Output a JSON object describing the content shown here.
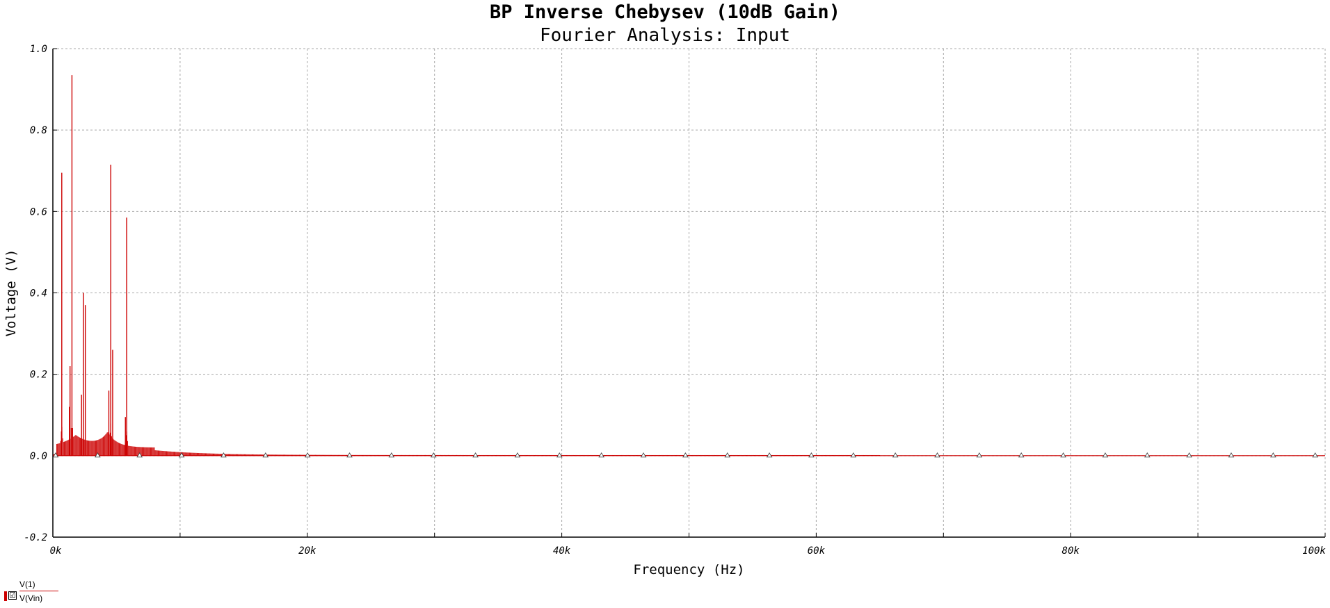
{
  "chart_data": {
    "type": "bar",
    "title": "BP Inverse Chebysev (10dB Gain)",
    "subtitle": "Fourier Analysis: Input",
    "xlabel": "Frequency (Hz)",
    "ylabel": "Voltage (V)",
    "xlim": [
      0,
      100000
    ],
    "ylim": [
      -0.2,
      1.0
    ],
    "xticks": [
      0,
      20000,
      40000,
      60000,
      80000,
      100000
    ],
    "xtick_labels": [
      "0k",
      "20k",
      "40k",
      "60k",
      "80k",
      "100k"
    ],
    "yticks": [
      -0.2,
      0.0,
      0.2,
      0.4,
      0.6,
      0.8,
      1.0
    ],
    "ytick_labels": [
      "-0.2",
      "0.0",
      "0.2",
      "0.4",
      "0.6",
      "0.8",
      "1.0"
    ],
    "grid": true,
    "series": [
      {
        "name": "V(Vin)",
        "color": "#cc0000",
        "peaks": [
          {
            "x": 700,
            "y": 0.695
          },
          {
            "x": 1500,
            "y": 0.935
          },
          {
            "x": 1350,
            "y": 0.22
          },
          {
            "x": 1300,
            "y": 0.12
          },
          {
            "x": 2400,
            "y": 0.4
          },
          {
            "x": 2550,
            "y": 0.37
          },
          {
            "x": 2250,
            "y": 0.15
          },
          {
            "x": 4550,
            "y": 0.715
          },
          {
            "x": 4700,
            "y": 0.26
          },
          {
            "x": 4400,
            "y": 0.16
          },
          {
            "x": 5800,
            "y": 0.585
          },
          {
            "x": 5700,
            "y": 0.095
          }
        ],
        "marker_spacing": 3300
      }
    ],
    "legend": {
      "position": "bottom-left",
      "entries": [
        "V(1)",
        "V(Vin)"
      ]
    },
    "colors": {
      "trace": "#cc0000",
      "grid": "#a8a8a8",
      "axis": "#000000"
    }
  },
  "legend": {
    "v1_label": "V(1)",
    "vin_label": "V(Vin)",
    "checkbox_glyph": "☑"
  }
}
